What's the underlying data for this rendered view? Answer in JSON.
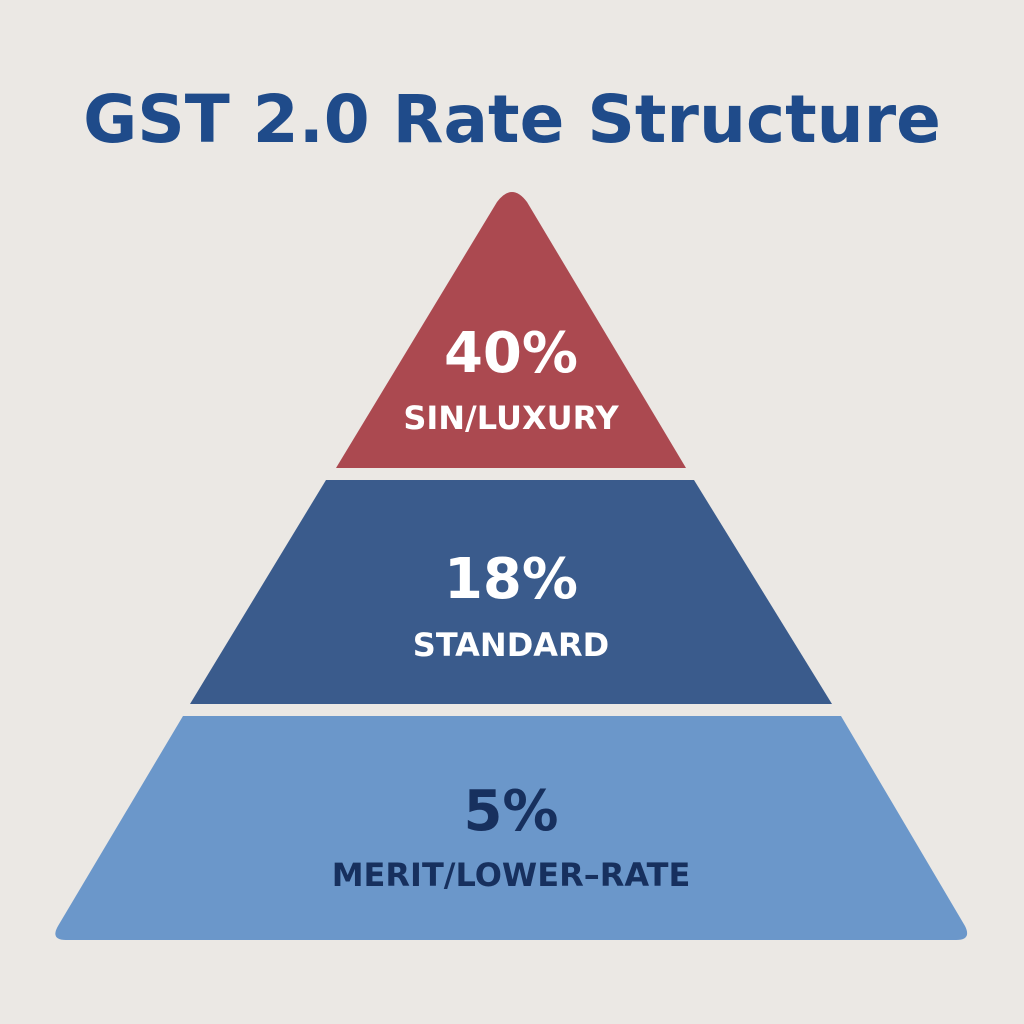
{
  "title": "GST 2.0 Rate Structure",
  "colors": {
    "background": "#ebe8e4",
    "title": "#1f4b8a",
    "top_tier": "#ab4950",
    "middle_tier": "#3a5b8c",
    "bottom_tier": "#6b97ca",
    "light_text": "#ffffff",
    "dark_text": "#17305e"
  },
  "tiers": [
    {
      "rate": "40%",
      "label": "SIN/LUXURY"
    },
    {
      "rate": "18%",
      "label": "STANDARD"
    },
    {
      "rate": "5%",
      "label": "MERIT/LOWER–RATE"
    }
  ]
}
